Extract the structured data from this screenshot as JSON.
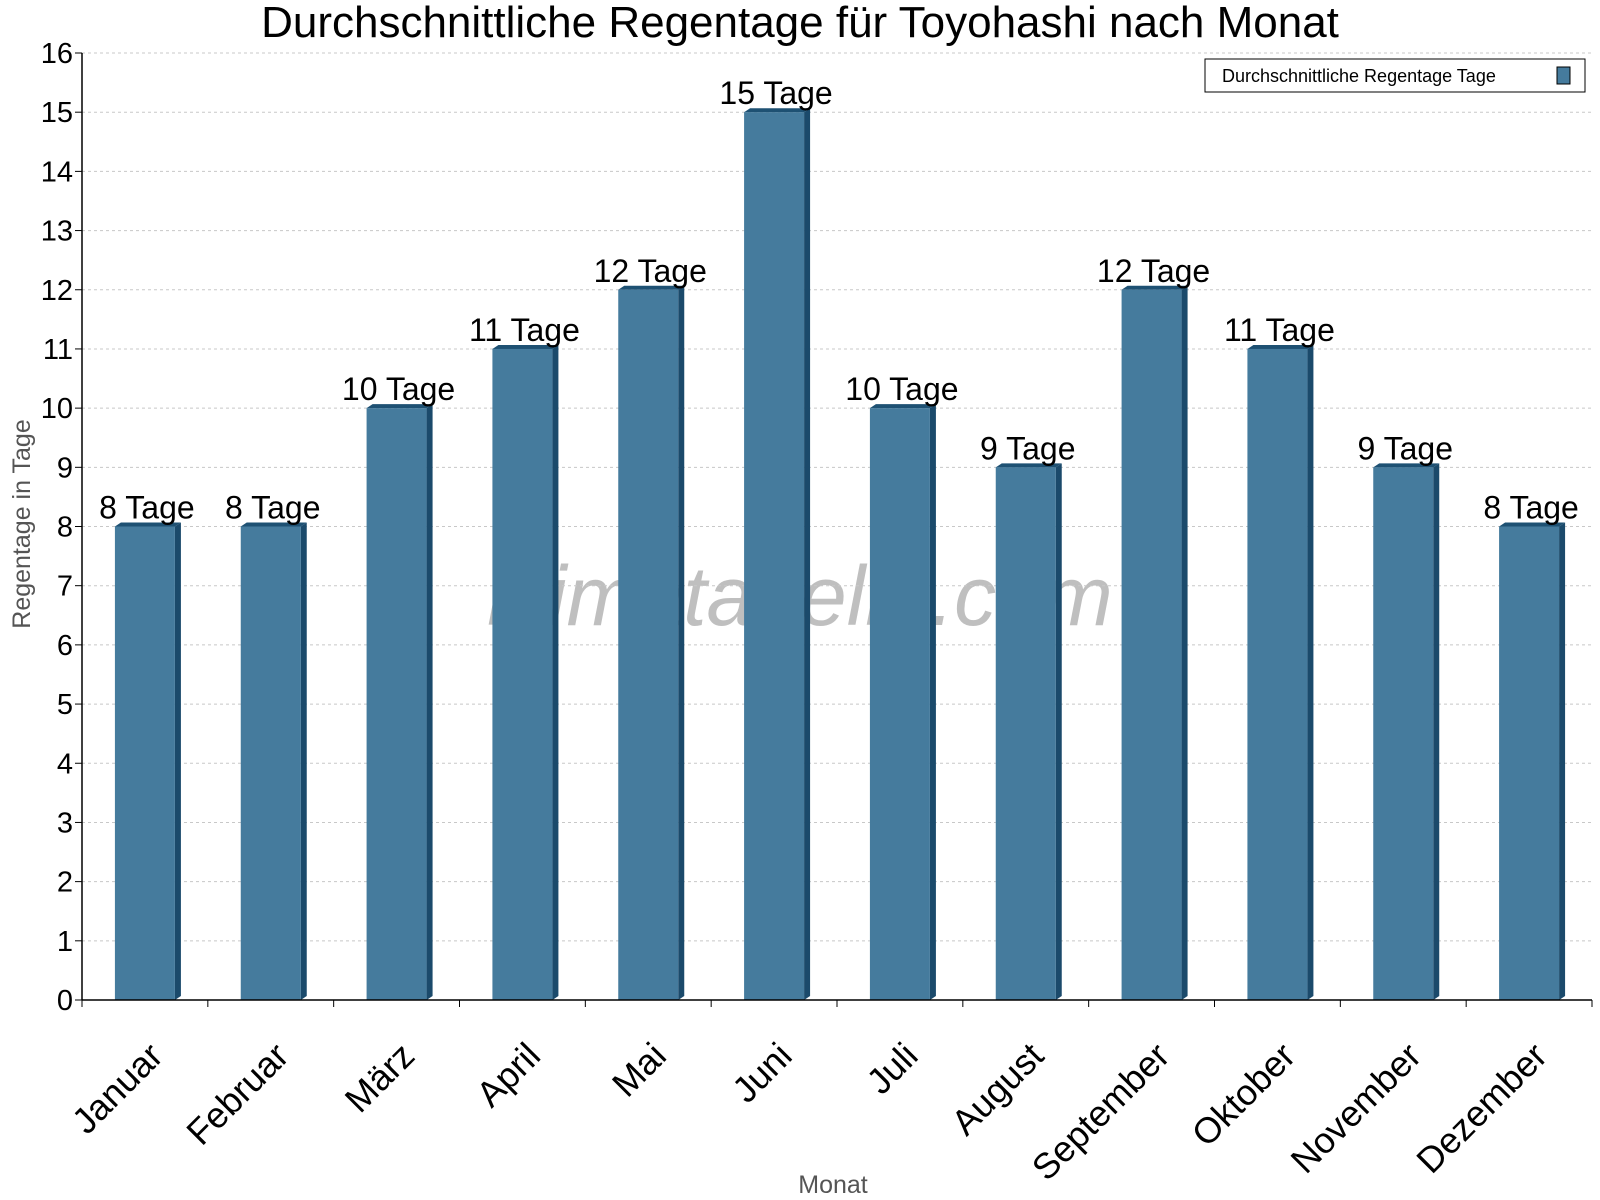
{
  "chart_data": {
    "type": "bar",
    "title": "Durchschnittliche Regentage für Toyohashi nach Monat",
    "xlabel": "Monat",
    "ylabel": "Regentage in Tage",
    "categories": [
      "Januar",
      "Februar",
      "März",
      "April",
      "Mai",
      "Juni",
      "Juli",
      "August",
      "September",
      "Oktober",
      "November",
      "Dezember"
    ],
    "series": [
      {
        "name": "Durchschnittliche Regentage Tage",
        "values": [
          8,
          8,
          10,
          11,
          12,
          15,
          10,
          9,
          12,
          11,
          9,
          8
        ],
        "data_labels": [
          "8 Tage",
          "8 Tage",
          "10 Tage",
          "11 Tage",
          "12 Tage",
          "15 Tage",
          "10 Tage",
          "9 Tage",
          "12 Tage",
          "11 Tage",
          "9 Tage",
          "8 Tage"
        ]
      }
    ],
    "ylim": [
      0,
      16
    ],
    "yticks": [
      "0",
      "1",
      "2",
      "3",
      "4",
      "5",
      "6",
      "7",
      "8",
      "9",
      "10",
      "11",
      "12",
      "13",
      "14",
      "15",
      "16"
    ],
    "grid": true,
    "legend_position": "top-right",
    "watermark": "klimatabelle.com",
    "colors": {
      "bar_front": "#457b9d",
      "bar_side": "#1b4a6b",
      "bar_top": "#1e5173",
      "grid": "#c8c8c8",
      "axis": "#000000"
    }
  }
}
